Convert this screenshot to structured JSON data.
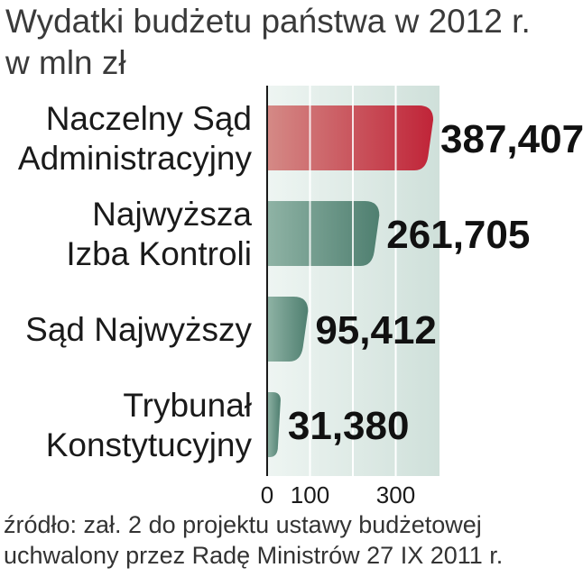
{
  "title": "Wydatki budżetu państwa w 2012 r.",
  "subtitle": "w mln zł",
  "source": {
    "line1": "źródło: zał. 2 do projektu ustawy budżetowej",
    "line2": "uchwalony przez Radę Ministrów 27 IX 2011 r."
  },
  "colors": {
    "highlight_start": "#d48a86",
    "highlight_end": "#c02438",
    "bar_start": "#8fb3a5",
    "bar_end": "#4f7f70",
    "plot_bg": "#cfe0da",
    "axis": "#1a1a1a"
  },
  "chart_data": {
    "type": "bar",
    "orientation": "horizontal",
    "title": "Wydatki budżetu państwa w 2012 r.",
    "subtitle": "w mln zł",
    "categories": [
      [
        "Naczelny Sąd",
        "Administracyjny"
      ],
      [
        "Najwyższa",
        "Izba Kontroli"
      ],
      [
        "Sąd Najwyższy"
      ],
      [
        "Trybunał",
        "Konstytucyjny"
      ]
    ],
    "values": [
      387.407,
      261.705,
      95.412,
      31.38
    ],
    "value_labels": [
      "387,407",
      "261,705",
      "95,412",
      "31,380"
    ],
    "highlight_index": 0,
    "xlim": [
      0,
      400
    ],
    "xticks": [
      0,
      100,
      300
    ],
    "xtick_labels": [
      "0",
      "100",
      "300"
    ],
    "grid": true
  }
}
